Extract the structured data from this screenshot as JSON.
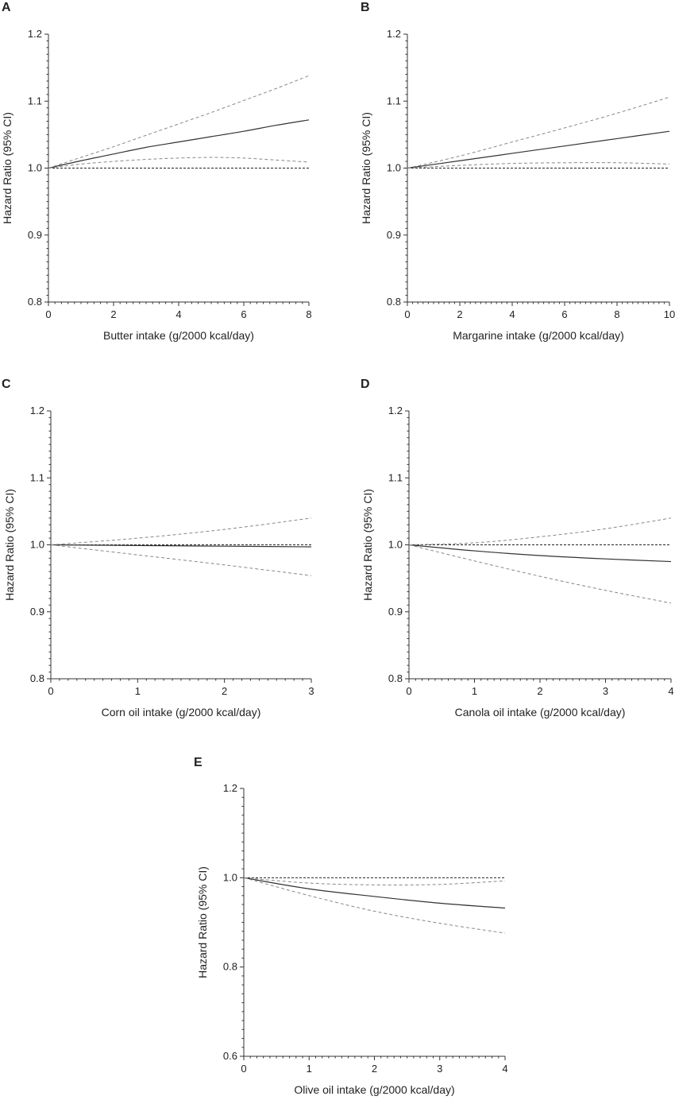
{
  "chart_data": [
    {
      "type": "line",
      "panel": "A",
      "xlabel": "Butter intake (g/2000 kcal/day)",
      "ylabel": "Hazard Ratio (95% CI)",
      "xlim": [
        0,
        8
      ],
      "ylim": [
        0.8,
        1.2
      ],
      "xticks": [
        "0",
        "2",
        "4",
        "6",
        "8"
      ],
      "yticks": [
        "0.8",
        "0.9",
        "1.0",
        "1.1",
        "1.2"
      ],
      "grid": false,
      "reference": {
        "y": 1.0,
        "style": "dashed",
        "color": "#222222"
      },
      "series": [
        {
          "role": "estimate",
          "style": "solid",
          "color": "#333333",
          "x": [
            0,
            1,
            2,
            3,
            4,
            5,
            6,
            7,
            8
          ],
          "y": [
            1.0,
            1.011,
            1.021,
            1.031,
            1.039,
            1.047,
            1.055,
            1.064,
            1.072
          ]
        },
        {
          "role": "upper",
          "style": "dashed",
          "color": "#888888",
          "x": [
            0,
            1,
            2,
            3,
            4,
            5,
            6,
            7,
            8
          ],
          "y": [
            1.0,
            1.016,
            1.032,
            1.049,
            1.066,
            1.083,
            1.101,
            1.119,
            1.138
          ]
        },
        {
          "role": "lower",
          "style": "dashed",
          "color": "#888888",
          "x": [
            0,
            1,
            2,
            3,
            4,
            5,
            6,
            7,
            8
          ],
          "y": [
            1.0,
            1.006,
            1.01,
            1.013,
            1.015,
            1.016,
            1.015,
            1.012,
            1.009
          ]
        }
      ]
    },
    {
      "type": "line",
      "panel": "B",
      "xlabel": "Margarine intake (g/2000 kcal/day)",
      "ylabel": "Hazard Ratio (95% CI)",
      "xlim": [
        0,
        10
      ],
      "ylim": [
        0.8,
        1.2
      ],
      "xticks": [
        "0",
        "2",
        "4",
        "6",
        "8",
        "10"
      ],
      "yticks": [
        "0.8",
        "0.9",
        "1.0",
        "1.1",
        "1.2"
      ],
      "grid": false,
      "reference": {
        "y": 1.0,
        "style": "dashed",
        "color": "#222222"
      },
      "series": [
        {
          "role": "estimate",
          "style": "solid",
          "color": "#333333",
          "x": [
            0,
            2,
            4,
            6,
            8,
            10
          ],
          "y": [
            1.0,
            1.011,
            1.022,
            1.033,
            1.044,
            1.055
          ]
        },
        {
          "role": "upper",
          "style": "dashed",
          "color": "#888888",
          "x": [
            0,
            2,
            4,
            6,
            8,
            10
          ],
          "y": [
            1.0,
            1.018,
            1.039,
            1.06,
            1.082,
            1.106
          ]
        },
        {
          "role": "lower",
          "style": "dashed",
          "color": "#888888",
          "x": [
            0,
            2,
            4,
            6,
            8,
            10
          ],
          "y": [
            1.0,
            1.004,
            1.007,
            1.008,
            1.008,
            1.006
          ]
        }
      ]
    },
    {
      "type": "line",
      "panel": "C",
      "xlabel": "Corn oil intake (g/2000 kcal/day)",
      "ylabel": "Hazard Ratio (95% CI)",
      "xlim": [
        0,
        3
      ],
      "ylim": [
        0.8,
        1.2
      ],
      "xticks": [
        "0",
        "1",
        "2",
        "3"
      ],
      "yticks": [
        "0.8",
        "0.9",
        "1.0",
        "1.1",
        "1.2"
      ],
      "grid": false,
      "reference": {
        "y": 1.0,
        "style": "dashed",
        "color": "#222222"
      },
      "series": [
        {
          "role": "estimate",
          "style": "solid",
          "color": "#333333",
          "x": [
            0,
            1,
            2,
            3
          ],
          "y": [
            1.0,
            0.999,
            0.998,
            0.997
          ]
        },
        {
          "role": "upper",
          "style": "dashed",
          "color": "#888888",
          "x": [
            0,
            1,
            2,
            3
          ],
          "y": [
            1.0,
            1.01,
            1.023,
            1.04
          ]
        },
        {
          "role": "lower",
          "style": "dashed",
          "color": "#888888",
          "x": [
            0,
            1,
            2,
            3
          ],
          "y": [
            1.0,
            0.985,
            0.97,
            0.954
          ]
        }
      ]
    },
    {
      "type": "line",
      "panel": "D",
      "xlabel": "Canola oil intake (g/2000 kcal/day)",
      "ylabel": "Hazard Ratio (95% CI)",
      "xlim": [
        0,
        4
      ],
      "ylim": [
        0.8,
        1.2
      ],
      "xticks": [
        "0",
        "1",
        "2",
        "3",
        "4"
      ],
      "yticks": [
        "0.8",
        "0.9",
        "1.0",
        "1.1",
        "1.2"
      ],
      "grid": false,
      "reference": {
        "y": 1.0,
        "style": "dashed",
        "color": "#222222"
      },
      "series": [
        {
          "role": "estimate",
          "style": "solid",
          "color": "#333333",
          "x": [
            0,
            1,
            2,
            3,
            4
          ],
          "y": [
            1.0,
            0.991,
            0.984,
            0.979,
            0.975
          ]
        },
        {
          "role": "upper",
          "style": "dashed",
          "color": "#888888",
          "x": [
            0,
            1,
            2,
            3,
            4
          ],
          "y": [
            1.0,
            1.003,
            1.012,
            1.024,
            1.04
          ]
        },
        {
          "role": "lower",
          "style": "dashed",
          "color": "#888888",
          "x": [
            0,
            1,
            2,
            3,
            4
          ],
          "y": [
            1.0,
            0.976,
            0.953,
            0.932,
            0.913
          ]
        }
      ]
    },
    {
      "type": "line",
      "panel": "E",
      "xlabel": "Olive oil intake (g/2000 kcal/day)",
      "ylabel": "Hazard Ratio (95% CI)",
      "xlim": [
        0,
        4
      ],
      "ylim": [
        0.6,
        1.2
      ],
      "xticks": [
        "0",
        "1",
        "2",
        "3",
        "4"
      ],
      "yticks": [
        "0.6",
        "0.8",
        "1.0",
        "1.2"
      ],
      "grid": false,
      "reference": {
        "y": 1.0,
        "style": "dashed",
        "color": "#222222"
      },
      "series": [
        {
          "role": "estimate",
          "style": "solid",
          "color": "#333333",
          "x": [
            0,
            1,
            2,
            3,
            4
          ],
          "y": [
            1.0,
            0.975,
            0.958,
            0.943,
            0.932
          ]
        },
        {
          "role": "upper",
          "style": "dashed",
          "color": "#888888",
          "x": [
            0,
            1,
            2,
            3,
            4
          ],
          "y": [
            1.0,
            0.988,
            0.984,
            0.985,
            0.993
          ]
        },
        {
          "role": "lower",
          "style": "dashed",
          "color": "#888888",
          "x": [
            0,
            1,
            2,
            3,
            4
          ],
          "y": [
            1.0,
            0.96,
            0.925,
            0.898,
            0.876
          ]
        }
      ]
    }
  ]
}
